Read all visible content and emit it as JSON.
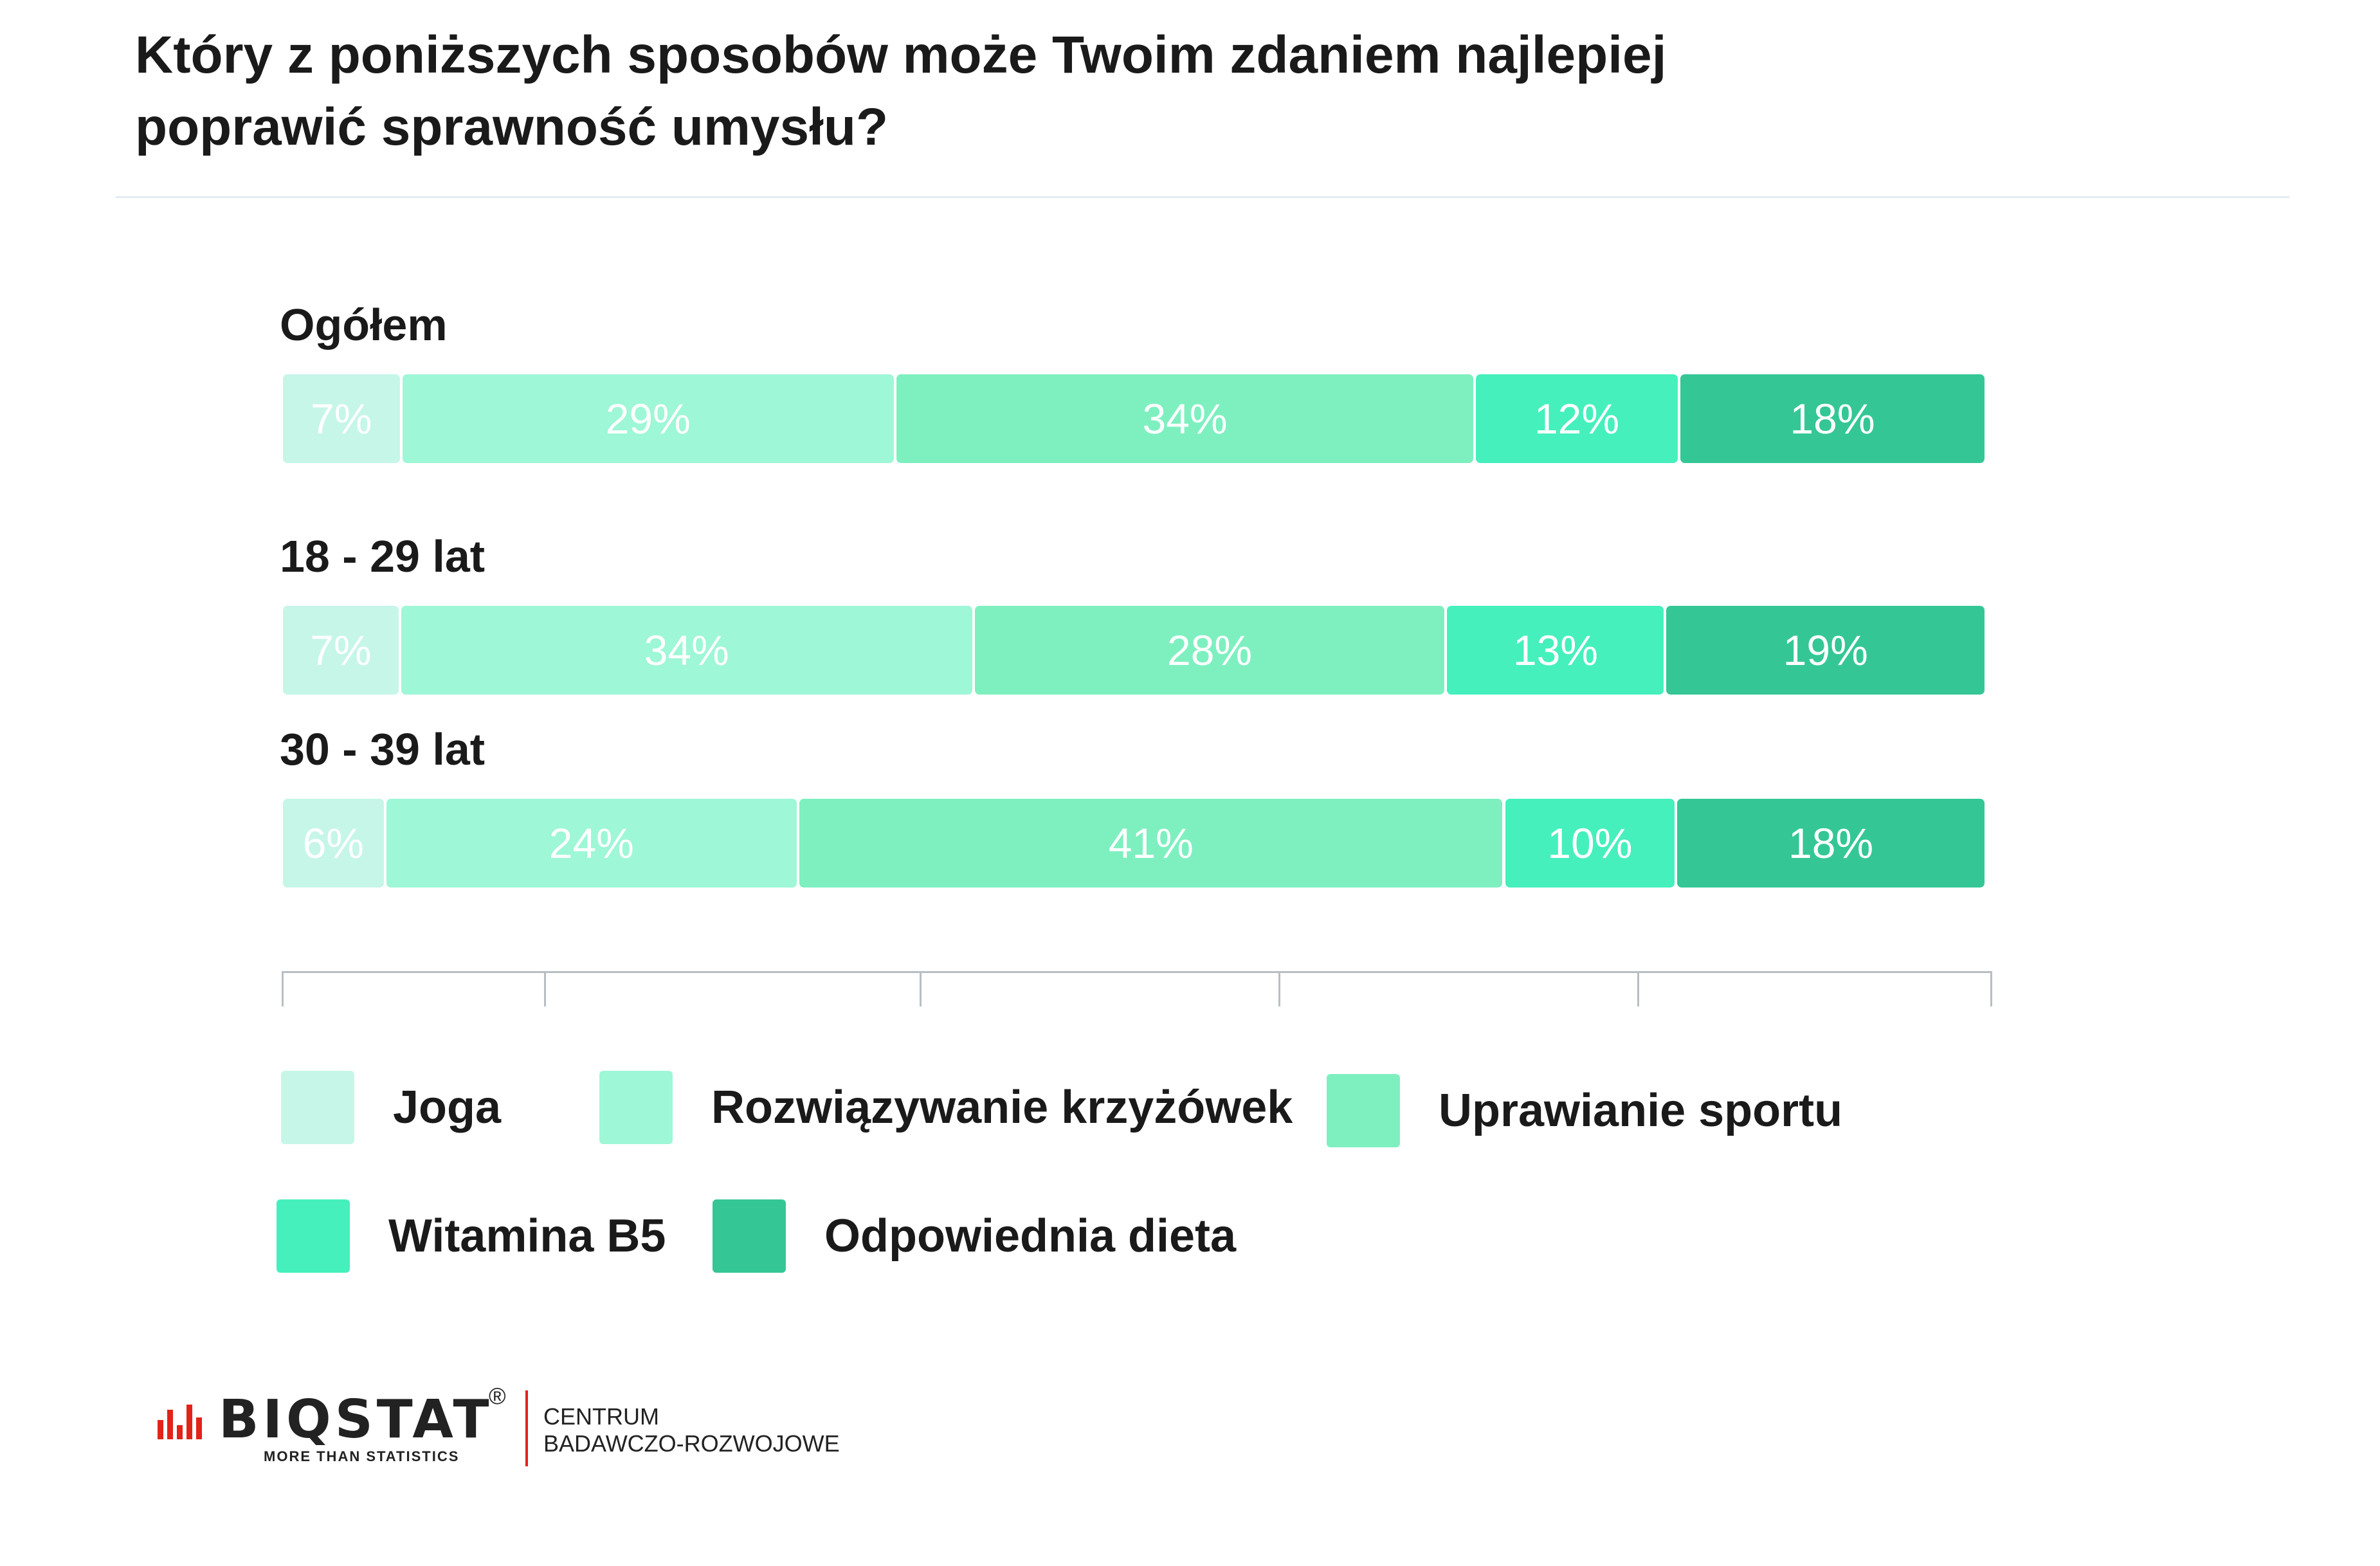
{
  "title_line1": "Który z poniższych sposobów może Twoim zdaniem najlepiej",
  "title_line2": "poprawić sprawność umysłu?",
  "chart_data": {
    "type": "bar",
    "stacked": true,
    "orientation": "horizontal",
    "categories": [
      "Ogółem",
      "18 - 29 lat",
      "30 - 39 lat"
    ],
    "series": [
      {
        "name": "Joga",
        "color": "#c6f6e8",
        "values": [
          7,
          7,
          6
        ],
        "labels": [
          "7%",
          "7%",
          "6%"
        ]
      },
      {
        "name": "Rozwiązywanie krzyżówek",
        "color": "#9ef7d7",
        "values": [
          29,
          34,
          24
        ],
        "labels": [
          "29%",
          "34%",
          "24%"
        ]
      },
      {
        "name": "Uprawianie sportu",
        "color": "#7ef0c0",
        "values": [
          34,
          28,
          41
        ],
        "labels": [
          "34%",
          "28%",
          "41%"
        ]
      },
      {
        "name": "Witamina B5",
        "color": "#45f0bd",
        "values": [
          12,
          13,
          10
        ],
        "labels": [
          "12%",
          "13%",
          "10%"
        ]
      },
      {
        "name": "Odpowiednia dieta",
        "color": "#34c795",
        "values": [
          18,
          19,
          18
        ],
        "labels": [
          "18%",
          "19%",
          "18%"
        ]
      }
    ],
    "grid": false,
    "legend_position": "bottom"
  },
  "footer": {
    "brand": "BIQSTAT",
    "registered": "®",
    "tagline": "MORE THAN STATISTICS",
    "org_line1": "CENTRUM",
    "org_line2": "BADAWCZO-ROZWOJOWE",
    "brand_color": "#e2231a"
  }
}
